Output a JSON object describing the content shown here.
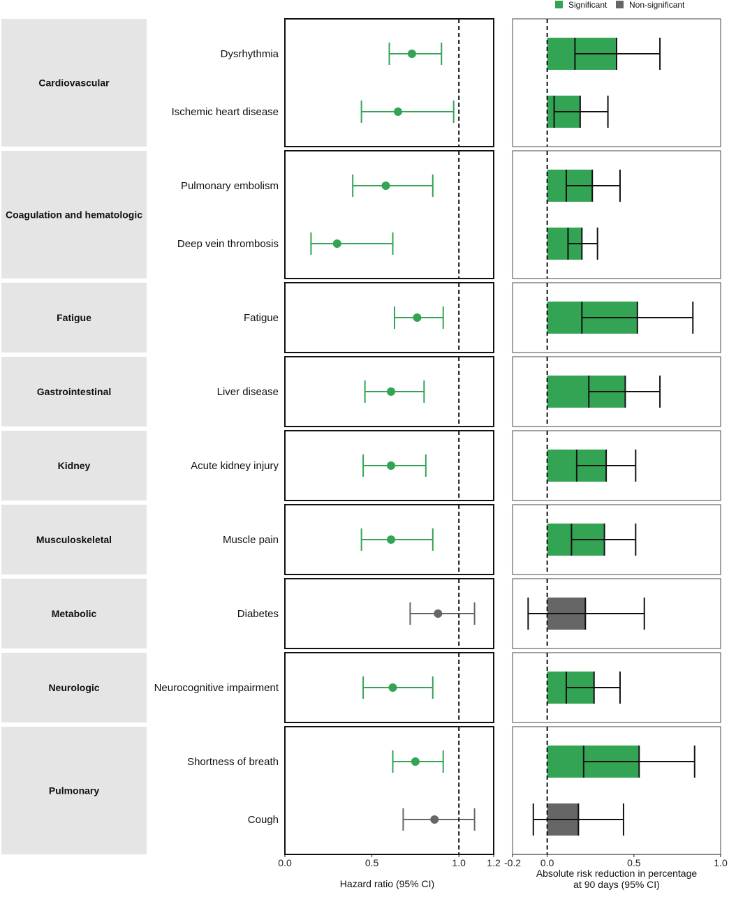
{
  "chart_data": {
    "type": "forest-and-bar",
    "legend": {
      "position": "top-right",
      "entries": [
        {
          "label": "Significant",
          "color": "#33a354"
        },
        {
          "label": "Non-significant",
          "color": "#666666"
        }
      ]
    },
    "groups": [
      {
        "name": "Cardiovascular",
        "items": [
          {
            "label": "Dysrhythmia",
            "hr": 0.73,
            "hr_lo": 0.6,
            "hr_hi": 0.9,
            "arr": 0.4,
            "arr_lo": 0.16,
            "arr_hi": 0.65,
            "significant": true
          },
          {
            "label": "Ischemic heart disease",
            "hr": 0.65,
            "hr_lo": 0.44,
            "hr_hi": 0.97,
            "arr": 0.19,
            "arr_lo": 0.04,
            "arr_hi": 0.35,
            "significant": true
          }
        ]
      },
      {
        "name": "Coagulation and hematologic",
        "items": [
          {
            "label": "Pulmonary embolism",
            "hr": 0.58,
            "hr_lo": 0.39,
            "hr_hi": 0.85,
            "arr": 0.26,
            "arr_lo": 0.11,
            "arr_hi": 0.42,
            "significant": true
          },
          {
            "label": "Deep vein thrombosis",
            "hr": 0.3,
            "hr_lo": 0.15,
            "hr_hi": 0.62,
            "arr": 0.2,
            "arr_lo": 0.12,
            "arr_hi": 0.29,
            "significant": true
          }
        ]
      },
      {
        "name": "Fatigue",
        "items": [
          {
            "label": "Fatigue",
            "hr": 0.76,
            "hr_lo": 0.63,
            "hr_hi": 0.91,
            "arr": 0.52,
            "arr_lo": 0.2,
            "arr_hi": 0.84,
            "significant": true
          }
        ]
      },
      {
        "name": "Gastrointestinal",
        "items": [
          {
            "label": "Liver disease",
            "hr": 0.61,
            "hr_lo": 0.46,
            "hr_hi": 0.8,
            "arr": 0.45,
            "arr_lo": 0.24,
            "arr_hi": 0.65,
            "significant": true
          }
        ]
      },
      {
        "name": "Kidney",
        "items": [
          {
            "label": "Acute kidney injury",
            "hr": 0.61,
            "hr_lo": 0.45,
            "hr_hi": 0.81,
            "arr": 0.34,
            "arr_lo": 0.17,
            "arr_hi": 0.51,
            "significant": true
          }
        ]
      },
      {
        "name": "Musculoskeletal",
        "items": [
          {
            "label": "Muscle pain",
            "hr": 0.61,
            "hr_lo": 0.44,
            "hr_hi": 0.85,
            "arr": 0.33,
            "arr_lo": 0.14,
            "arr_hi": 0.51,
            "significant": true
          }
        ]
      },
      {
        "name": "Metabolic",
        "items": [
          {
            "label": "Diabetes",
            "hr": 0.88,
            "hr_lo": 0.72,
            "hr_hi": 1.09,
            "arr": 0.22,
            "arr_lo": -0.11,
            "arr_hi": 0.56,
            "significant": false
          }
        ]
      },
      {
        "name": "Neurologic",
        "items": [
          {
            "label": "Neurocognitive impairment",
            "hr": 0.62,
            "hr_lo": 0.45,
            "hr_hi": 0.85,
            "arr": 0.27,
            "arr_lo": 0.11,
            "arr_hi": 0.42,
            "significant": true
          }
        ]
      },
      {
        "name": "Pulmonary",
        "items": [
          {
            "label": "Shortness of breath",
            "hr": 0.75,
            "hr_lo": 0.62,
            "hr_hi": 0.91,
            "arr": 0.53,
            "arr_lo": 0.21,
            "arr_hi": 0.85,
            "significant": true
          },
          {
            "label": "Cough",
            "hr": 0.86,
            "hr_lo": 0.68,
            "hr_hi": 1.09,
            "arr": 0.18,
            "arr_lo": -0.08,
            "arr_hi": 0.44,
            "significant": false
          }
        ]
      }
    ],
    "hr_axis": {
      "label": "Hazard ratio (95% CI)",
      "range": [
        0.0,
        1.2
      ],
      "ticks": [
        0.0,
        0.5,
        1.0,
        1.2
      ],
      "tick_labels": [
        "0.0",
        "0.5",
        "1.0",
        "1.2"
      ],
      "reference": 1.0
    },
    "arr_axis": {
      "label_line1": "Absolute risk reduction in percentage",
      "label_line2": "at 90 days (95% CI)",
      "range": [
        -0.2,
        1.0
      ],
      "ticks": [
        -0.2,
        0.0,
        0.5,
        1.0
      ],
      "tick_labels": [
        "-0.2",
        "0.0",
        "0.5",
        "1.0"
      ],
      "reference": 0.0
    }
  }
}
